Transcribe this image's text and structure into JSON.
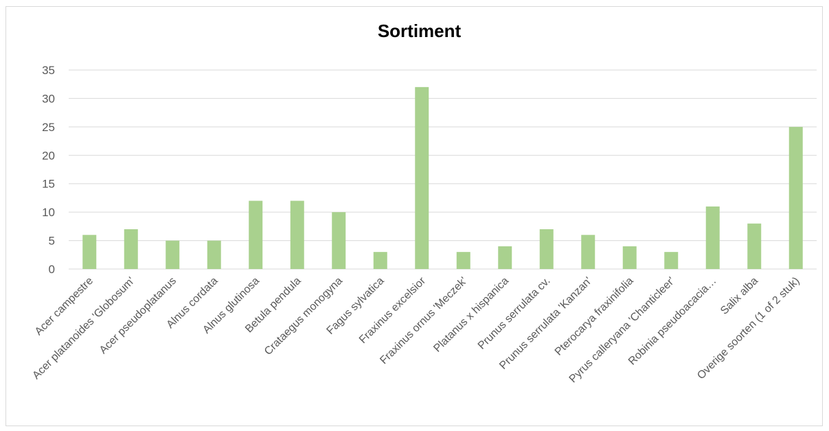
{
  "chart_data": {
    "type": "bar",
    "title": "Sortiment",
    "xlabel": "",
    "ylabel": "",
    "ylim": [
      0,
      35
    ],
    "yticks": [
      "0",
      "5",
      "10",
      "15",
      "20",
      "25",
      "30",
      "35"
    ],
    "grid": true,
    "legend": "none",
    "bar_color": "#a9d18e",
    "categories": [
      "Acer campestre",
      "Acer platanoides 'Globosum'",
      "Acer pseudoplatanus",
      "Alnus cordata",
      "Alnus glutinosa",
      "Betula pendula",
      "Crataegus monogyna",
      "Fagus sylvatica",
      "Fraxinus excelsior",
      "Fraxinus ornus 'Meczek'",
      "Platanus x hispanica",
      "Prunus serrulata cv.",
      "Prunus serrulata 'Kanzan'",
      "Pterocarya fraxinifolia",
      "Pyrus calleryana 'Chanticleer'",
      "Robinia pseudoacacia…",
      "Salix alba",
      "Overige soorten (1 of 2 stuk)"
    ],
    "values": [
      6,
      7,
      5,
      5,
      12,
      12,
      10,
      3,
      32,
      3,
      4,
      7,
      6,
      4,
      3,
      11,
      8,
      25
    ]
  }
}
